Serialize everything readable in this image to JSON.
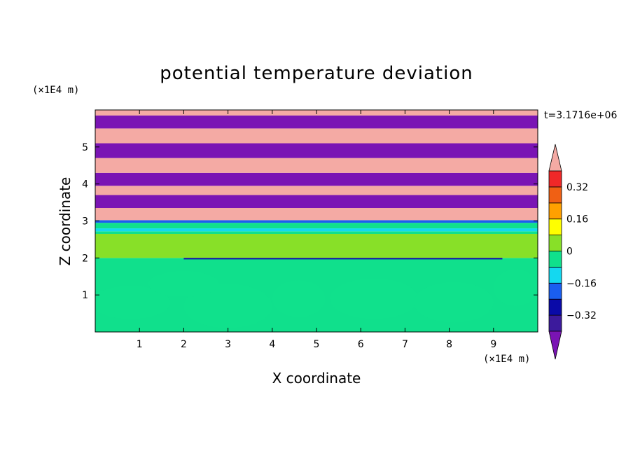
{
  "chart_data": {
    "type": "heatmap",
    "title": "potential temperature deviation",
    "xlabel": "X coordinate",
    "ylabel": "Z coordinate",
    "x_unit": "(×1E4 m)",
    "y_unit": "(×1E4 m)",
    "time_label": "t=3.1716e+06",
    "xlim": [
      0,
      10
    ],
    "ylim": [
      0,
      6
    ],
    "x_ticks": [
      "1",
      "2",
      "3",
      "4",
      "5",
      "6",
      "7",
      "8",
      "9"
    ],
    "y_ticks": [
      "1",
      "2",
      "3",
      "4",
      "5"
    ],
    "colorbar": {
      "levels": [
        -0.4,
        -0.32,
        -0.24,
        -0.16,
        -0.08,
        0,
        0.08,
        0.16,
        0.24,
        0.32,
        0.4
      ],
      "labels": [
        "0.32",
        "0.16",
        "0",
        "−0.16",
        "−0.32"
      ],
      "colors": [
        "#7a14b4",
        "#3c1a9c",
        "#0a0aa8",
        "#1a5ef0",
        "#14d8f0",
        "#10e08c",
        "#88e028",
        "#ffff00",
        "#ffa000",
        "#f06014",
        "#f02828",
        "#f4aaa4"
      ],
      "extend": "both"
    },
    "bands": [
      {
        "z": [
          0.0,
          2.0
        ],
        "color": "#10e08c"
      },
      {
        "z": [
          2.0,
          2.65
        ],
        "color": "#88e028"
      },
      {
        "z": [
          2.65,
          2.72
        ],
        "color": "#10e08c"
      },
      {
        "z": [
          2.72,
          2.8
        ],
        "color": "#14d8f0"
      },
      {
        "z": [
          2.8,
          2.95
        ],
        "color": "#10e08c"
      },
      {
        "z": [
          2.95,
          3.02
        ],
        "color": "#1a5ef0"
      },
      {
        "z": [
          3.02,
          3.35
        ],
        "color": "#f4aaa4"
      },
      {
        "z": [
          3.35,
          3.7
        ],
        "color": "#7a14b4"
      },
      {
        "z": [
          3.7,
          3.95
        ],
        "color": "#f4aaa4"
      },
      {
        "z": [
          3.95,
          4.3
        ],
        "color": "#7a14b4"
      },
      {
        "z": [
          4.3,
          4.7
        ],
        "color": "#f4aaa4"
      },
      {
        "z": [
          4.7,
          5.1
        ],
        "color": "#7a14b4"
      },
      {
        "z": [
          5.1,
          5.5
        ],
        "color": "#f4aaa4"
      },
      {
        "z": [
          5.5,
          5.85
        ],
        "color": "#7a14b4"
      },
      {
        "z": [
          5.85,
          6.0
        ],
        "color": "#f4aaa4"
      }
    ]
  },
  "colors": {
    "background": "#ffffff",
    "axes": "#000000"
  }
}
